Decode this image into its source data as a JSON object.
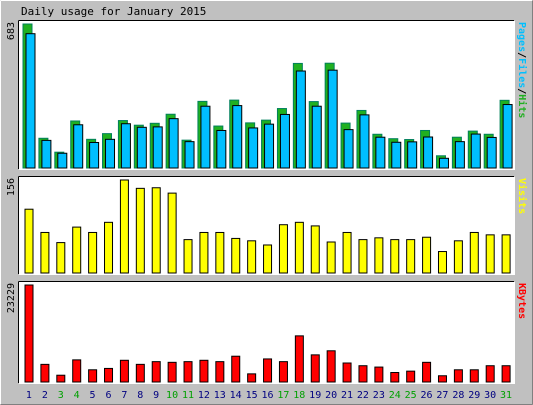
{
  "chart_data": {
    "type": "bar",
    "title": "Daily usage for January 2015",
    "days": [
      "1",
      "2",
      "3",
      "4",
      "5",
      "6",
      "7",
      "8",
      "9",
      "10",
      "11",
      "12",
      "13",
      "14",
      "15",
      "16",
      "17",
      "18",
      "19",
      "20",
      "21",
      "22",
      "23",
      "24",
      "25",
      "26",
      "27",
      "28",
      "29",
      "30",
      "31"
    ],
    "weekend_days": [
      "3",
      "4",
      "10",
      "11",
      "17",
      "18",
      "24",
      "25",
      "31"
    ],
    "colors": {
      "hits": "#00805C",
      "hits_fill": "#20B020",
      "files": "#0070C0",
      "files_fill": "#00BFFF",
      "visits": "#FFFF00",
      "kbytes": "#FF0000",
      "weekday_label": "#000080",
      "weekend_label": "#00A000",
      "background": "#C0C0C0",
      "plot_background": "#FFFFFF"
    },
    "panels": [
      {
        "key": "usage",
        "max_label": "683",
        "ylim": [
          0,
          683
        ],
        "legend": [
          {
            "text": "Pages",
            "color": "#00BFFF"
          },
          {
            "text": "/",
            "color": "#000000"
          },
          {
            "text": "Files",
            "color": "#00BFFF"
          },
          {
            "text": "/",
            "color": "#000000"
          },
          {
            "text": "Hits",
            "color": "#20B020"
          }
        ],
        "series": [
          {
            "name": "Hits",
            "values": [
              683,
              141,
              75,
              223,
              136,
              163,
              225,
              203,
              212,
              255,
              132,
              316,
              199,
              322,
              214,
              227,
              282,
              496,
              315,
              497,
              213,
              273,
              160,
              139,
              135,
              178,
              58,
              146,
              175,
              160,
              321
            ]
          },
          {
            "name": "Files",
            "values": [
              637,
              131,
              70,
              205,
              121,
              136,
              210,
              193,
              195,
              234,
              125,
              293,
              178,
              296,
              190,
              208,
              254,
              460,
              293,
              464,
              182,
              252,
              146,
              122,
              124,
              147,
              46,
              125,
              161,
              145,
              301
            ]
          }
        ]
      },
      {
        "key": "visits",
        "max_label": "156",
        "ylim": [
          0,
          156
        ],
        "legend": [
          {
            "text": "Visits",
            "color": "#FFFF00"
          }
        ],
        "series": [
          {
            "name": "Visits",
            "values": [
              107,
              68,
              51,
              77,
              68,
              85,
              156,
              142,
              143,
              134,
              56,
              68,
              68,
              58,
              54,
              47,
              81,
              85,
              79,
              52,
              68,
              56,
              59,
              56,
              56,
              60,
              36,
              54,
              68,
              64,
              64
            ]
          }
        ]
      },
      {
        "key": "kbytes",
        "max_label": "23229",
        "ylim": [
          0,
          23229
        ],
        "legend": [
          {
            "text": "KBytes",
            "color": "#FF0000"
          }
        ],
        "series": [
          {
            "name": "KBytes",
            "values": [
              23229,
              4223,
              1624,
              5302,
              2925,
              3250,
              5200,
              4226,
              4875,
              4712,
              4875,
              5200,
              4875,
              6175,
              1950,
              5525,
              4875,
              11050,
              6500,
              7475,
              4550,
              3900,
              3575,
              2275,
              2600,
              4712,
              1495,
              2925,
              2925,
              3900,
              3900
            ]
          }
        ]
      }
    ]
  }
}
